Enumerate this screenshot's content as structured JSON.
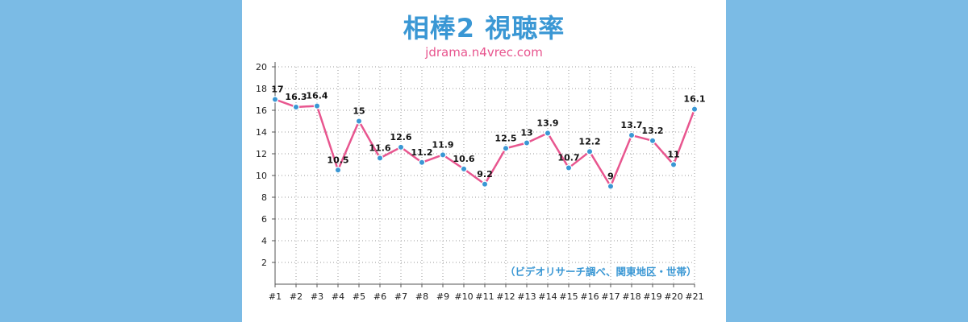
{
  "page": {
    "title": "相棒2 視聴率",
    "subtitle": "jdrama.n4vrec.com",
    "note": "（ビデオリサーチ調べ、関東地区・世帯）"
  },
  "colors": {
    "background": "#7bbbe5",
    "title": "#3a97d4",
    "line": "#e8568f",
    "marker": "#3a97d4"
  },
  "chart_data": {
    "type": "line",
    "categories": [
      "#1",
      "#2",
      "#3",
      "#4",
      "#5",
      "#6",
      "#7",
      "#8",
      "#9",
      "#10",
      "#11",
      "#12",
      "#13",
      "#14",
      "#15",
      "#16",
      "#17",
      "#18",
      "#19",
      "#20",
      "#21"
    ],
    "series": [
      {
        "values": [
          17,
          16.3,
          16.4,
          10.5,
          15,
          11.6,
          12.6,
          11.2,
          11.9,
          10.6,
          9.2,
          12.5,
          13,
          13.9,
          10.7,
          12.2,
          9,
          13.7,
          13.2,
          11,
          16.1
        ]
      }
    ],
    "yticks": [
      2,
      4,
      6,
      8,
      10,
      12,
      14,
      16,
      18,
      20
    ],
    "ylim": [
      0,
      20
    ],
    "grid": true,
    "data_labels": true
  }
}
